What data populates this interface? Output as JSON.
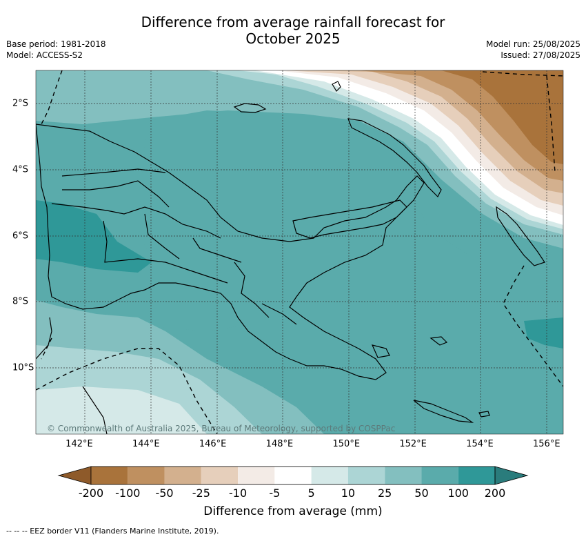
{
  "title_line1": "Difference from average rainfall forecast for",
  "title_line2": "October 2025",
  "meta": {
    "base_period": "Base period: 1981-2018",
    "model": "Model: ACCESS-S2",
    "model_run": "Model run: 25/08/2025",
    "issued": "Issued: 27/08/2025"
  },
  "map": {
    "region": "Papua New Guinea",
    "lon_range": [
      140.7,
      156.5
    ],
    "lat_range": [
      -12.0,
      -1.0
    ],
    "x_ticks": [
      "142°E",
      "144°E",
      "146°E",
      "148°E",
      "150°E",
      "152°E",
      "154°E",
      "156°E"
    ],
    "y_ticks": [
      "2°S",
      "4°S",
      "6°S",
      "8°S",
      "10°S"
    ],
    "gridlines": true,
    "copyright": "© Commonwealth of Australia 2025, Bureau of Meteorology, supported by COSPPac"
  },
  "colorbar": {
    "labels": [
      "-200",
      "-100",
      "-50",
      "-25",
      "-10",
      "-5",
      "5",
      "10",
      "25",
      "50",
      "100",
      "200"
    ],
    "colors": [
      "#a9733b",
      "#bf9060",
      "#d3b08e",
      "#e6cfbb",
      "#f3ebe6",
      "#ffffff",
      "#d5e9e8",
      "#acd5d5",
      "#83bfbf",
      "#5aabab",
      "#2f9898"
    ],
    "under_color": "#8e5a2a",
    "over_color": "#2a7c7c",
    "title": "Difference from average (mm)"
  },
  "footer": "-- -- -- EEZ border V11 (Flanders Marine Institute, 2019)."
}
